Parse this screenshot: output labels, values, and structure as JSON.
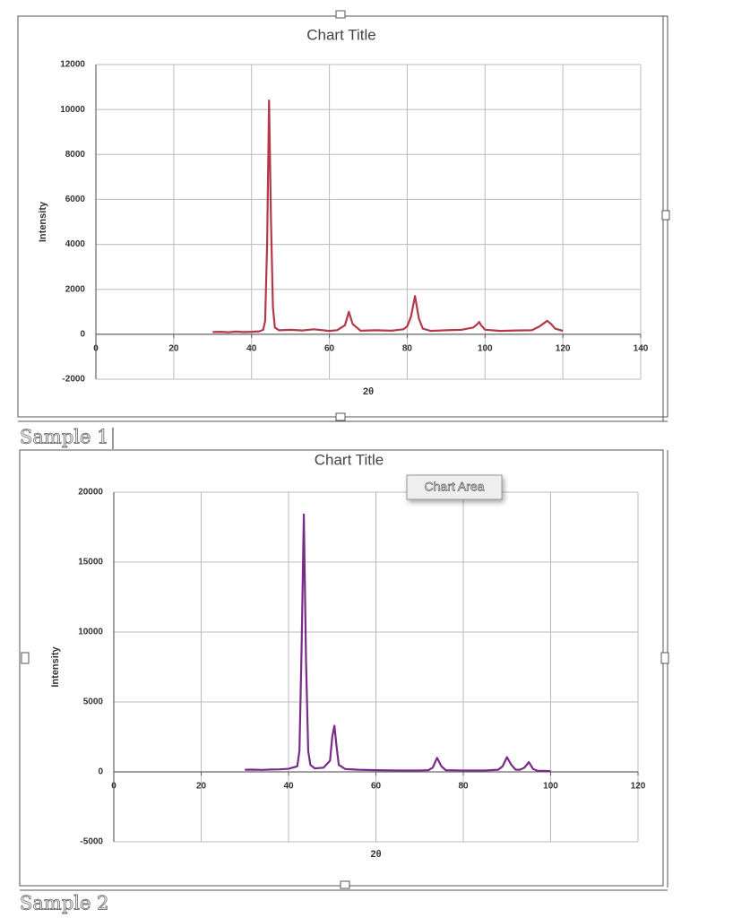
{
  "chart_data": [
    {
      "type": "line",
      "title": "Chart Title",
      "x_label": "2θ",
      "y_label": "Intensity",
      "x": [
        30,
        32,
        34,
        36,
        38,
        40,
        42,
        43,
        43.5,
        44,
        44.5,
        45,
        45.5,
        46,
        47,
        50,
        53,
        56,
        60,
        62,
        64,
        65,
        66,
        68,
        72,
        76,
        79,
        80,
        81,
        82,
        83,
        84,
        86,
        90,
        94,
        97,
        98,
        98.5,
        99,
        100,
        104,
        108,
        112,
        114,
        116,
        117,
        118,
        120
      ],
      "series": [
        {
          "color": "#b23a48",
          "values": [
            100,
            110,
            90,
            120,
            100,
            110,
            130,
            200,
            600,
            4000,
            10400,
            5000,
            1200,
            300,
            180,
            200,
            170,
            220,
            150,
            180,
            400,
            1000,
            450,
            160,
            180,
            160,
            220,
            350,
            800,
            1700,
            700,
            250,
            150,
            180,
            200,
            300,
            450,
            550,
            400,
            200,
            150,
            170,
            180,
            350,
            600,
            450,
            250,
            150
          ]
        }
      ],
      "xlim": [
        0,
        140
      ],
      "xticks": [
        0,
        20,
        40,
        60,
        80,
        100,
        120,
        140
      ],
      "ylim": [
        -2000,
        12000
      ],
      "yticks": [
        -2000,
        0,
        2000,
        4000,
        6000,
        8000,
        10000,
        12000
      ],
      "grid": true
    },
    {
      "type": "line",
      "title": "Chart Title",
      "x_label": "2θ",
      "y_label": "Intensity",
      "x": [
        30,
        32,
        34,
        36,
        38,
        40,
        42,
        42.5,
        43,
        43.5,
        44,
        44.5,
        45,
        46,
        48,
        49.5,
        50,
        50.5,
        51,
        51.5,
        53,
        56,
        60,
        65,
        70,
        72,
        73,
        74,
        75,
        76,
        80,
        85,
        88,
        89,
        90,
        91,
        92,
        93,
        94,
        95,
        96,
        97,
        100
      ],
      "series": [
        {
          "color": "#7a2a88",
          "values": [
            150,
            160,
            140,
            170,
            180,
            220,
            400,
            1500,
            9000,
            18400,
            8000,
            1500,
            500,
            250,
            300,
            800,
            2500,
            3300,
            1800,
            500,
            200,
            150,
            120,
            100,
            100,
            120,
            300,
            1000,
            400,
            120,
            100,
            100,
            150,
            400,
            1050,
            500,
            150,
            150,
            300,
            700,
            200,
            80,
            60
          ]
        }
      ],
      "xlim": [
        0,
        120
      ],
      "xticks": [
        0,
        20,
        40,
        60,
        80,
        100,
        120
      ],
      "ylim": [
        -5000,
        20000
      ],
      "yticks": [
        -5000,
        0,
        5000,
        10000,
        15000,
        20000
      ],
      "grid": true
    }
  ],
  "captions": [
    "Sample 1",
    "Sample 2"
  ],
  "tooltip": "Chart Area"
}
